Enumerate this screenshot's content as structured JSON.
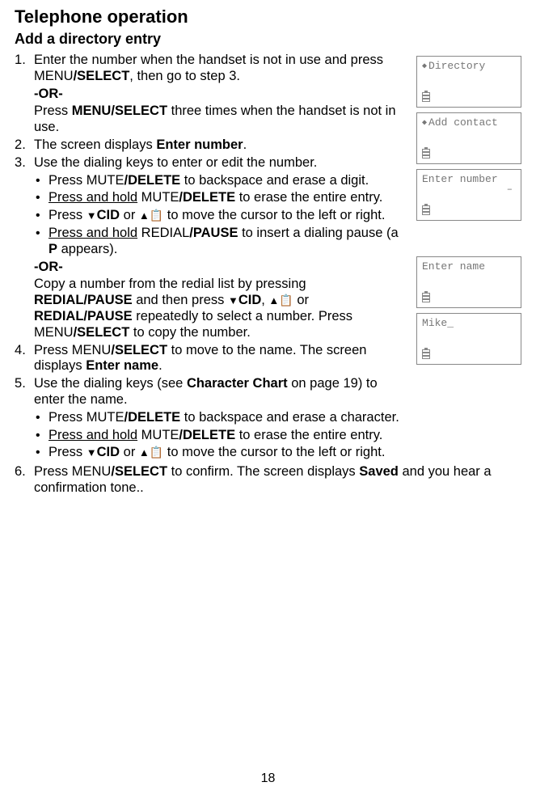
{
  "header": "Telephone operation",
  "section": "Add a directory entry",
  "steps": {
    "s1": {
      "textA": "Enter the number when the handset is not in use and press ",
      "menu": "MENU",
      "select": "/SELECT",
      "textB": ", then go to step 3."
    },
    "or": "-OR-",
    "s1or": {
      "textA": "Press ",
      "menu": "MENU/",
      "select": "SELECT",
      "textB": " three times when the handset is not in use."
    },
    "s2": {
      "textA": "The screen displays ",
      "enter": "Enter number",
      "textB": "."
    },
    "s3": {
      "text": "Use the dialing keys to enter or edit the number."
    },
    "s3b1": {
      "textA": "Press ",
      "mute": "MUTE",
      "delete": "/DELETE",
      "textB": " to backspace and erase a digit."
    },
    "s3b2": {
      "ph": "Press and hold",
      "space": " ",
      "mute": "MUTE",
      "delete": "/DELETE",
      "textB": " to erase the entire entry."
    },
    "s3b3": {
      "textA": "Press ",
      "cid": "CID",
      "orword": " or ",
      "textB": " to move the cursor to the left or right."
    },
    "s3b4": {
      "ph": "Press and hold",
      "space": " ",
      "redial": "REDIAL",
      "pause": "/PAUSE",
      "textB": " to insert a dialing pause (a ",
      "p": "P",
      "textC": " appears)."
    },
    "s3or": {
      "textA": "Copy a number from the redial list by pressing ",
      "redialpause1": "REDIAL/",
      "pause1": "PAUSE",
      "textB": " and then press ",
      "cid": "CID",
      "comma": ", ",
      "orword": " or ",
      "redialpause2": "REDIAL/",
      "pause2": "PAUSE",
      "textC": " repeatedly to select a number. Press ",
      "menu": "MENU",
      "select": "/SELECT",
      "textD": " to copy the number."
    },
    "s4": {
      "textA": "Press ",
      "menu": "MENU",
      "select": "/SELECT",
      "textB": " to move to the name. The screen displays ",
      "entername": "Enter name",
      "textC": "."
    },
    "s5": {
      "textA": "Use the dialing keys (see ",
      "chart": "Character Chart",
      "textB": " on page 19) to enter the name."
    },
    "s5b1": {
      "textA": "Press ",
      "mute": "MUTE",
      "delete": "/DELETE",
      "textB": " to backspace and erase a character."
    },
    "s5b2": {
      "ph": "Press and hold",
      "space": " ",
      "mute": "MUTE",
      "delete": "/DELETE",
      "textB": " to erase the entire entry."
    },
    "s5b3": {
      "textA": "Press ",
      "cid": "CID",
      "orword": " or ",
      "textB": " to move the cursor to the left or right."
    },
    "s6": {
      "textA": "Press ",
      "menu": "MENU",
      "select": "/SELECT",
      "textB": " to confirm. The screen displays ",
      "saved": "Saved",
      "textC": " and you hear a confirmation tone.."
    }
  },
  "screens": {
    "directory": "Directory",
    "addcontact": "Add contact",
    "enternumber": "Enter number",
    "entername": "Enter name",
    "mike": "Mike_",
    "cursor": "–"
  },
  "pagenum": "18"
}
